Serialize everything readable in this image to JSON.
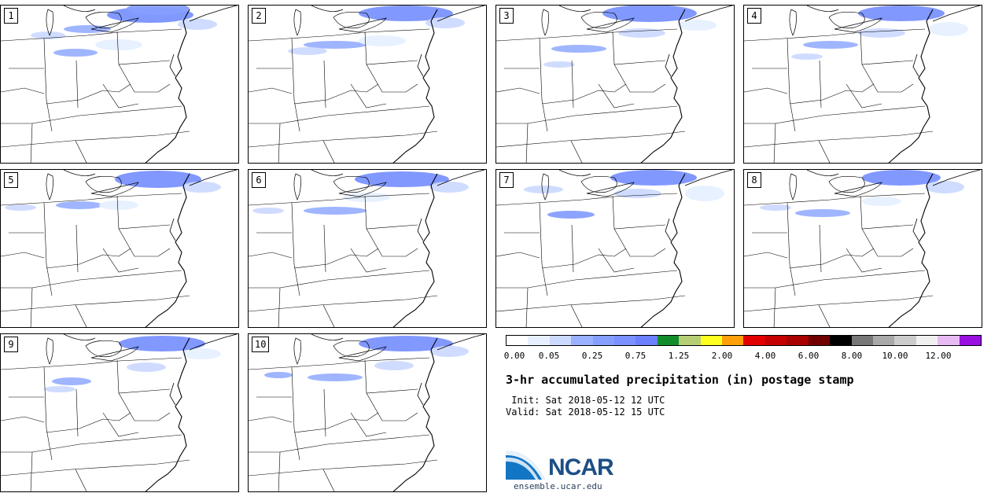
{
  "panels": [
    {
      "label": "1"
    },
    {
      "label": "2"
    },
    {
      "label": "3"
    },
    {
      "label": "4"
    },
    {
      "label": "5"
    },
    {
      "label": "6"
    },
    {
      "label": "7"
    },
    {
      "label": "8"
    },
    {
      "label": "9"
    },
    {
      "label": "10"
    }
  ],
  "colorbar": {
    "colors": [
      "#ffffff",
      "#e6f0ff",
      "#cddaff",
      "#9ab1ff",
      "#869fff",
      "#7a92ff",
      "#6b7fff",
      "#128c2a",
      "#b6ce74",
      "#ffff1e",
      "#ffa00a",
      "#e30000",
      "#c40000",
      "#a90000",
      "#700000",
      "#000000",
      "#777777",
      "#a9a9a9",
      "#cccccc",
      "#f0f0f0",
      "#e7baf5",
      "#9a10e0"
    ],
    "tick_labels": [
      "0.00",
      "0.05",
      "0.25",
      "0.75",
      "1.25",
      "2.00",
      "4.00",
      "6.00",
      "8.00",
      "10.00",
      "12.00"
    ]
  },
  "title": "3-hr accumulated precipitation (in) postage stamp",
  "init_line": " Init: Sat 2018-05-12 12 UTC",
  "valid_line": "Valid: Sat 2018-05-12 15 UTC",
  "logo": {
    "text": "NCAR",
    "url": "ensemble.ucar.edu"
  }
}
